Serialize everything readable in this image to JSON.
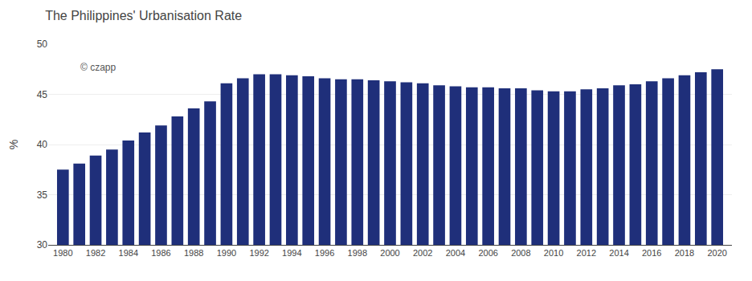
{
  "chart_data": {
    "type": "bar",
    "title": "The Philippines' Urbanisation Rate",
    "ylabel": "%",
    "x": [
      1980,
      1981,
      1982,
      1983,
      1984,
      1985,
      1986,
      1987,
      1988,
      1989,
      1990,
      1991,
      1992,
      1993,
      1994,
      1995,
      1996,
      1997,
      1998,
      1999,
      2000,
      2001,
      2002,
      2003,
      2004,
      2005,
      2006,
      2007,
      2008,
      2009,
      2010,
      2011,
      2012,
      2013,
      2014,
      2015,
      2016,
      2017,
      2018,
      2019,
      2020
    ],
    "values": [
      37.5,
      38.1,
      38.9,
      39.5,
      40.4,
      41.2,
      41.9,
      42.8,
      43.6,
      44.3,
      46.1,
      46.6,
      47.0,
      47.0,
      46.9,
      46.8,
      46.6,
      46.5,
      46.5,
      46.4,
      46.3,
      46.2,
      46.1,
      45.9,
      45.8,
      45.7,
      45.7,
      45.6,
      45.6,
      45.4,
      45.3,
      45.3,
      45.5,
      45.6,
      45.9,
      46.0,
      46.3,
      46.6,
      46.9,
      47.2,
      47.5
    ],
    "color": "#1f2f7a",
    "xlim": [
      1979.1,
      2020.9
    ],
    "xticks": [
      1980,
      1982,
      1984,
      1986,
      1988,
      1990,
      1992,
      1994,
      1996,
      1998,
      2000,
      2002,
      2004,
      2006,
      2008,
      2010,
      2012,
      2014,
      2016,
      2018,
      2020
    ],
    "ylim": [
      30,
      50
    ],
    "yticks": [
      30,
      35,
      40,
      45,
      50
    ],
    "grid": true,
    "annotations": [
      "© czapp"
    ]
  }
}
